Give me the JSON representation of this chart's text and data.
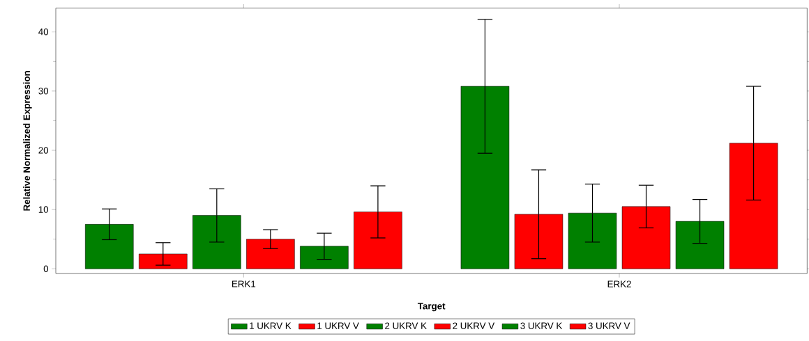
{
  "chart_data": {
    "type": "bar",
    "xlabel": "Target",
    "ylabel": "Relative Normalized Expression",
    "categories": [
      "ERK1",
      "ERK2"
    ],
    "series": [
      {
        "name": "1 UKRV K",
        "color": "#008000",
        "values": [
          7.5,
          30.8
        ],
        "errors": [
          2.6,
          11.3
        ]
      },
      {
        "name": "1 UKRV V",
        "color": "#ff0000",
        "values": [
          2.5,
          9.2
        ],
        "errors": [
          1.9,
          7.5
        ]
      },
      {
        "name": "2 UKRV K",
        "color": "#008000",
        "values": [
          9.0,
          9.4
        ],
        "errors": [
          4.5,
          4.9
        ]
      },
      {
        "name": "2 UKRV V",
        "color": "#ff0000",
        "values": [
          5.0,
          10.5
        ],
        "errors": [
          1.6,
          3.6
        ]
      },
      {
        "name": "3 UKRV K",
        "color": "#008000",
        "values": [
          3.8,
          8.0
        ],
        "errors": [
          2.2,
          3.7
        ]
      },
      {
        "name": "3 UKRV V",
        "color": "#ff0000",
        "values": [
          9.6,
          21.2
        ],
        "errors": [
          4.4,
          9.6
        ]
      }
    ],
    "ylim": [
      -0.8,
      44
    ],
    "yticks": [
      0,
      10,
      20,
      30,
      40
    ],
    "legend": "bottom"
  }
}
